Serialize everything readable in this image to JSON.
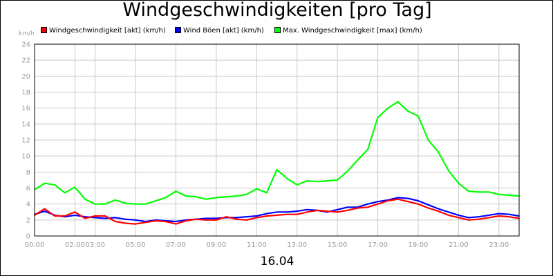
{
  "chart_data": {
    "type": "line",
    "title": "Windgeschwindigkeiten [pro Tag]",
    "y_unit": "km/h",
    "date_label": "16.04",
    "ylim": [
      0,
      24
    ],
    "yticks": [
      "0",
      "2",
      "4",
      "6",
      "8",
      "10",
      "12",
      "14",
      "16",
      "18",
      "20",
      "22",
      "24"
    ],
    "xlim": [
      0,
      24
    ],
    "xtick_labels": [
      "00:00",
      "02:00",
      "03:00",
      "05:00",
      "07:00",
      "09:00",
      "11:00",
      "13:00",
      "15:00",
      "17:00",
      "19:00",
      "21:00",
      "23:00"
    ],
    "xtick_hours": [
      0,
      2,
      3,
      5,
      7,
      9,
      11,
      13,
      15,
      17,
      19,
      21,
      23
    ],
    "grid": true,
    "legend_position": "top",
    "series": [
      {
        "name": "Windgeschwindigkeit [akt] (km/h)",
        "color": "#ff0000",
        "points": [
          [
            0,
            2.6
          ],
          [
            0.5,
            3.4
          ],
          [
            1,
            2.5
          ],
          [
            1.5,
            2.5
          ],
          [
            2,
            3
          ],
          [
            2.5,
            2.2
          ],
          [
            3,
            2.5
          ],
          [
            3.5,
            2.5
          ],
          [
            4,
            1.8
          ],
          [
            4.5,
            1.6
          ],
          [
            5,
            1.5
          ],
          [
            5.5,
            1.7
          ],
          [
            6,
            1.9
          ],
          [
            6.5,
            1.8
          ],
          [
            7,
            1.5
          ],
          [
            7.5,
            1.9
          ],
          [
            8,
            2.1
          ],
          [
            8.5,
            2
          ],
          [
            9,
            2
          ],
          [
            9.5,
            2.4
          ],
          [
            10,
            2.1
          ],
          [
            10.5,
            2
          ],
          [
            11,
            2.3
          ],
          [
            11.5,
            2.5
          ],
          [
            12,
            2.6
          ],
          [
            12.5,
            2.7
          ],
          [
            13,
            2.7
          ],
          [
            13.5,
            3
          ],
          [
            14,
            3.2
          ],
          [
            14.5,
            3.1
          ],
          [
            15,
            3
          ],
          [
            15.5,
            3.2
          ],
          [
            16,
            3.5
          ],
          [
            16.5,
            3.6
          ],
          [
            17,
            4
          ],
          [
            17.5,
            4.4
          ],
          [
            18,
            4.6
          ],
          [
            18.5,
            4.3
          ],
          [
            19,
            4
          ],
          [
            19.5,
            3.5
          ],
          [
            20,
            3.1
          ],
          [
            20.5,
            2.6
          ],
          [
            21,
            2.3
          ],
          [
            21.5,
            2
          ],
          [
            22,
            2.1
          ],
          [
            22.5,
            2.3
          ],
          [
            23,
            2.5
          ],
          [
            23.5,
            2.4
          ],
          [
            24,
            2.2
          ]
        ]
      },
      {
        "name": "Wind Böen [akt] (km/h)",
        "color": "#0000ff",
        "points": [
          [
            0,
            2.7
          ],
          [
            0.5,
            3.1
          ],
          [
            1,
            2.6
          ],
          [
            1.5,
            2.4
          ],
          [
            2,
            2.6
          ],
          [
            2.5,
            2.4
          ],
          [
            3,
            2.3
          ],
          [
            3.5,
            2.2
          ],
          [
            4,
            2.3
          ],
          [
            4.5,
            2.1
          ],
          [
            5,
            2
          ],
          [
            5.5,
            1.8
          ],
          [
            6,
            2
          ],
          [
            6.5,
            1.9
          ],
          [
            7,
            1.8
          ],
          [
            7.5,
            2
          ],
          [
            8,
            2.1
          ],
          [
            8.5,
            2.2
          ],
          [
            9,
            2.2
          ],
          [
            9.5,
            2.3
          ],
          [
            10,
            2.3
          ],
          [
            10.5,
            2.4
          ],
          [
            11,
            2.5
          ],
          [
            11.5,
            2.8
          ],
          [
            12,
            3
          ],
          [
            12.5,
            3
          ],
          [
            13,
            3.1
          ],
          [
            13.5,
            3.3
          ],
          [
            14,
            3.2
          ],
          [
            14.5,
            3
          ],
          [
            15,
            3.3
          ],
          [
            15.5,
            3.6
          ],
          [
            16,
            3.6
          ],
          [
            16.5,
            4
          ],
          [
            17,
            4.3
          ],
          [
            17.5,
            4.5
          ],
          [
            18,
            4.8
          ],
          [
            18.5,
            4.7
          ],
          [
            19,
            4.4
          ],
          [
            19.5,
            3.9
          ],
          [
            20,
            3.4
          ],
          [
            20.5,
            3
          ],
          [
            21,
            2.6
          ],
          [
            21.5,
            2.3
          ],
          [
            22,
            2.4
          ],
          [
            22.5,
            2.6
          ],
          [
            23,
            2.8
          ],
          [
            23.5,
            2.7
          ],
          [
            24,
            2.5
          ]
        ]
      },
      {
        "name": "Max. Windgeschwindigkeit [max] (km/h)",
        "color": "#00ff00",
        "points": [
          [
            0,
            5.8
          ],
          [
            0.5,
            6.6
          ],
          [
            1,
            6.4
          ],
          [
            1.5,
            5.4
          ],
          [
            2,
            6.1
          ],
          [
            2.5,
            4.6
          ],
          [
            3,
            4
          ],
          [
            3.5,
            4
          ],
          [
            4,
            4.5
          ],
          [
            4.5,
            4.1
          ],
          [
            5,
            4
          ],
          [
            5.5,
            4
          ],
          [
            6,
            4.4
          ],
          [
            6.5,
            4.8
          ],
          [
            7,
            5.6
          ],
          [
            7.5,
            5
          ],
          [
            8,
            4.9
          ],
          [
            8.5,
            4.6
          ],
          [
            9,
            4.8
          ],
          [
            9.5,
            4.9
          ],
          [
            10,
            5
          ],
          [
            10.5,
            5.2
          ],
          [
            11,
            5.9
          ],
          [
            11.5,
            5.4
          ],
          [
            12,
            8.3
          ],
          [
            12.5,
            7.2
          ],
          [
            13,
            6.4
          ],
          [
            13.5,
            6.9
          ],
          [
            14,
            6.8
          ],
          [
            14.5,
            6.9
          ],
          [
            15,
            7
          ],
          [
            15.5,
            8.1
          ],
          [
            16,
            9.5
          ],
          [
            16.5,
            10.8
          ],
          [
            17,
            14.8
          ],
          [
            17.5,
            16
          ],
          [
            18,
            16.8
          ],
          [
            18.5,
            15.6
          ],
          [
            19,
            15
          ],
          [
            19.5,
            12
          ],
          [
            20,
            10.5
          ],
          [
            20.5,
            8.2
          ],
          [
            21,
            6.6
          ],
          [
            21.5,
            5.6
          ],
          [
            22,
            5.5
          ],
          [
            22.5,
            5.5
          ],
          [
            23,
            5.2
          ],
          [
            23.5,
            5.1
          ],
          [
            24,
            5
          ]
        ]
      }
    ]
  }
}
